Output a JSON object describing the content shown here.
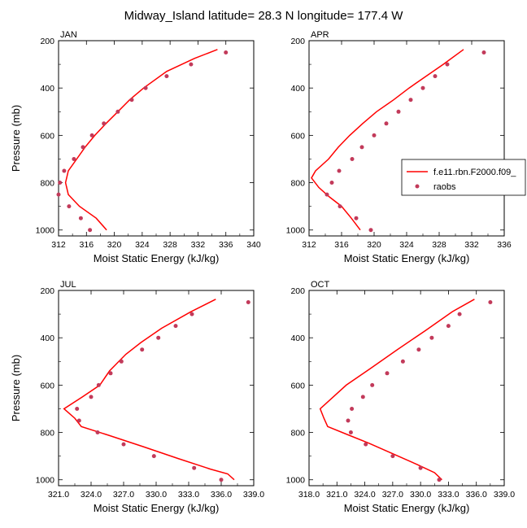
{
  "figure_title": "Midway_Island  latitude= 28.3 N longitude= 177.4 W",
  "colors": {
    "model": "#ff0000",
    "obs": "#c23a5a"
  },
  "legend": {
    "model_label": "f.e11.rbn.F2000.f09_",
    "obs_label": "raobs"
  },
  "chart_data": [
    {
      "type": "line",
      "panel": "JAN",
      "xlabel": "Moist Static Energy (kJ/kg)",
      "ylabel": "Pressure (mb)",
      "xlim": [
        312,
        340
      ],
      "ylim": [
        1025,
        200
      ],
      "xticks": [
        "312",
        "316",
        "320",
        "324",
        "328",
        "332",
        "336",
        "340"
      ],
      "yticks": [
        "200",
        "400",
        "600",
        "800",
        "1000"
      ],
      "series": [
        {
          "name": "f.e11.rbn.F2000.f09_",
          "style": "line",
          "points": [
            [
              334.8,
              237
            ],
            [
              331.5,
              275
            ],
            [
              327.5,
              330
            ],
            [
              324.2,
              400
            ],
            [
              322.2,
              450
            ],
            [
              320.5,
              500
            ],
            [
              318.8,
              550
            ],
            [
              317.2,
              600
            ],
            [
              315.8,
              650
            ],
            [
              314.6,
              700
            ],
            [
              313.4,
              750
            ],
            [
              313.0,
              800
            ],
            [
              313.4,
              850
            ],
            [
              315.0,
              900
            ],
            [
              317.4,
              950
            ],
            [
              318.9,
              1000
            ]
          ]
        },
        {
          "name": "raobs",
          "style": "scatter",
          "points": [
            [
              336.0,
              250
            ],
            [
              331.0,
              300
            ],
            [
              327.5,
              350
            ],
            [
              324.5,
              400
            ],
            [
              322.5,
              450
            ],
            [
              320.5,
              500
            ],
            [
              318.5,
              550
            ],
            [
              316.8,
              600
            ],
            [
              315.5,
              650
            ],
            [
              314.2,
              700
            ],
            [
              312.8,
              750
            ],
            [
              312.2,
              800
            ],
            [
              312.0,
              850
            ],
            [
              313.5,
              900
            ],
            [
              315.2,
              950
            ],
            [
              316.5,
              1000
            ]
          ]
        }
      ]
    },
    {
      "type": "line",
      "panel": "APR",
      "xlabel": "Moist Static Energy (kJ/kg)",
      "ylabel": "",
      "xlim": [
        312,
        336
      ],
      "ylim": [
        1025,
        200
      ],
      "xticks": [
        "312",
        "316",
        "320",
        "324",
        "328",
        "332",
        "336"
      ],
      "yticks": [
        "200",
        "400",
        "600",
        "800",
        "1000"
      ],
      "series": [
        {
          "name": "f.e11.rbn.F2000.f09_",
          "style": "line",
          "points": [
            [
              331.0,
              237
            ],
            [
              328.5,
              300
            ],
            [
              326.4,
              350
            ],
            [
              324.3,
              400
            ],
            [
              322.4,
              450
            ],
            [
              320.3,
              500
            ],
            [
              318.6,
              550
            ],
            [
              317.0,
              600
            ],
            [
              315.6,
              650
            ],
            [
              314.4,
              700
            ],
            [
              312.8,
              750
            ],
            [
              312.3,
              780
            ],
            [
              313.2,
              820
            ],
            [
              314.5,
              860
            ],
            [
              316.0,
              900
            ],
            [
              317.2,
              950
            ],
            [
              318.3,
              1000
            ]
          ]
        },
        {
          "name": "raobs",
          "style": "scatter",
          "points": [
            [
              333.5,
              250
            ],
            [
              329.0,
              300
            ],
            [
              327.5,
              350
            ],
            [
              326.0,
              400
            ],
            [
              324.5,
              450
            ],
            [
              323.0,
              500
            ],
            [
              321.5,
              550
            ],
            [
              320.0,
              600
            ],
            [
              318.5,
              650
            ],
            [
              317.3,
              700
            ],
            [
              315.7,
              750
            ],
            [
              314.8,
              800
            ],
            [
              314.2,
              850
            ],
            [
              315.8,
              900
            ],
            [
              317.8,
              950
            ],
            [
              319.6,
              1000
            ]
          ]
        }
      ]
    },
    {
      "type": "line",
      "panel": "JUL",
      "xlabel": "Moist Static Energy (kJ/kg)",
      "ylabel": "Pressure (mb)",
      "xlim": [
        321,
        339
      ],
      "ylim": [
        1025,
        200
      ],
      "xticks": [
        "321.0",
        "324.0",
        "327.0",
        "330.0",
        "333.0",
        "336.0",
        "339.0"
      ],
      "yticks": [
        "200",
        "400",
        "600",
        "800",
        "1000"
      ],
      "series": [
        {
          "name": "f.e11.rbn.F2000.f09_",
          "style": "line",
          "points": [
            [
              335.5,
              237
            ],
            [
              333.2,
              290
            ],
            [
              330.5,
              360
            ],
            [
              328.6,
              420
            ],
            [
              327.2,
              470
            ],
            [
              325.7,
              540
            ],
            [
              324.8,
              600
            ],
            [
              323.2,
              650
            ],
            [
              321.5,
              700
            ],
            [
              322.5,
              740
            ],
            [
              323.1,
              775
            ],
            [
              325.5,
              810
            ],
            [
              328.8,
              860
            ],
            [
              332.0,
              910
            ],
            [
              335.0,
              955
            ],
            [
              336.6,
              975
            ],
            [
              337.2,
              1000
            ]
          ]
        },
        {
          "name": "raobs",
          "style": "scatter",
          "points": [
            [
              338.5,
              250
            ],
            [
              333.3,
              300
            ],
            [
              331.8,
              350
            ],
            [
              330.2,
              400
            ],
            [
              328.7,
              450
            ],
            [
              326.8,
              500
            ],
            [
              325.8,
              550
            ],
            [
              324.7,
              600
            ],
            [
              324.0,
              650
            ],
            [
              322.7,
              700
            ],
            [
              322.9,
              750
            ],
            [
              324.6,
              800
            ],
            [
              327.0,
              850
            ],
            [
              329.8,
              900
            ],
            [
              333.5,
              950
            ],
            [
              336.0,
              1000
            ]
          ]
        }
      ]
    },
    {
      "type": "line",
      "panel": "OCT",
      "xlabel": "Moist Static Energy (kJ/kg)",
      "ylabel": "",
      "xlim": [
        318,
        339
      ],
      "ylim": [
        1025,
        200
      ],
      "xticks": [
        "318.0",
        "321.0",
        "324.0",
        "327.0",
        "330.0",
        "333.0",
        "336.0",
        "339.0"
      ],
      "yticks": [
        "200",
        "400",
        "600",
        "800",
        "1000"
      ],
      "series": [
        {
          "name": "f.e11.rbn.F2000.f09_",
          "style": "line",
          "points": [
            [
              335.8,
              237
            ],
            [
              333.4,
              290
            ],
            [
              330.5,
              370
            ],
            [
              327.5,
              450
            ],
            [
              324.6,
              530
            ],
            [
              322.0,
              600
            ],
            [
              320.6,
              650
            ],
            [
              319.2,
              700
            ],
            [
              319.6,
              740
            ],
            [
              320.0,
              775
            ],
            [
              322.2,
              810
            ],
            [
              324.4,
              845
            ],
            [
              327.0,
              890
            ],
            [
              329.6,
              935
            ],
            [
              331.5,
              970
            ],
            [
              332.3,
              1000
            ]
          ]
        },
        {
          "name": "raobs",
          "style": "scatter",
          "points": [
            [
              337.5,
              250
            ],
            [
              334.2,
              300
            ],
            [
              333.0,
              350
            ],
            [
              331.2,
              400
            ],
            [
              329.8,
              450
            ],
            [
              328.1,
              500
            ],
            [
              326.4,
              550
            ],
            [
              324.8,
              600
            ],
            [
              323.8,
              650
            ],
            [
              322.6,
              700
            ],
            [
              322.2,
              750
            ],
            [
              322.5,
              800
            ],
            [
              324.1,
              850
            ],
            [
              327.0,
              900
            ],
            [
              330.0,
              950
            ],
            [
              332.0,
              1000
            ]
          ]
        }
      ]
    }
  ]
}
